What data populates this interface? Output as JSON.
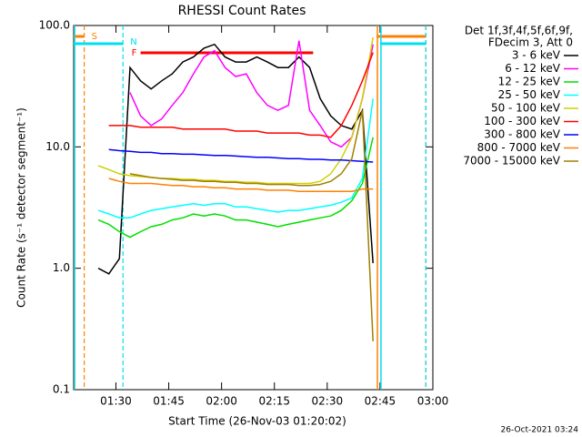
{
  "chart_data": {
    "type": "line",
    "title": "RHESSI Count Rates",
    "ylabel": "Count Rate (s⁻¹ detector segment⁻¹)",
    "xlabel": "Start Time (26-Nov-03 01:20:02)",
    "footer": "26-Oct-2021 03:24",
    "legend_title": [
      "Det 1f,3f,4f,5f,6f,9f,",
      "FDecim 3, Att 0"
    ],
    "log_y": true,
    "xlim": [
      "01:18",
      "03:00"
    ],
    "xticks": [
      "01:30",
      "01:45",
      "02:00",
      "02:15",
      "02:30",
      "02:45",
      "03:00"
    ],
    "ylim": [
      0.1,
      100
    ],
    "yticks": [
      0.1,
      {
        "value": 1,
        "label": "1.0"
      },
      {
        "value": 10,
        "label": "10.0"
      },
      {
        "value": 100,
        "label": "100.0"
      }
    ],
    "x": [
      "01:25",
      "01:28",
      "01:31",
      "01:34",
      "01:37",
      "01:40",
      "01:43",
      "01:46",
      "01:49",
      "01:52",
      "01:55",
      "01:58",
      "02:01",
      "02:04",
      "02:07",
      "02:10",
      "02:13",
      "02:16",
      "02:19",
      "02:22",
      "02:25",
      "02:28",
      "02:31",
      "02:34",
      "02:37",
      "02:40",
      "02:43"
    ],
    "series": [
      {
        "name": "3 - 6 keV",
        "color": "#000000",
        "values": [
          1.0,
          0.9,
          1.2,
          45,
          35,
          30,
          35,
          40,
          50,
          55,
          65,
          70,
          55,
          50,
          50,
          55,
          50,
          45,
          45,
          55,
          45,
          25,
          18,
          15,
          14,
          20,
          1.1
        ]
      },
      {
        "name": "6 - 12 keV",
        "color": "#ff00ff",
        "values": [
          null,
          null,
          null,
          28,
          18,
          15,
          17,
          22,
          28,
          40,
          55,
          62,
          45,
          38,
          40,
          28,
          22,
          20,
          22,
          75,
          20,
          15,
          11,
          10,
          12,
          25,
          70
        ]
      },
      {
        "name": "12 - 25 keV",
        "color": "#00e000",
        "values": [
          2.5,
          2.3,
          2.0,
          1.8,
          2.0,
          2.2,
          2.3,
          2.5,
          2.6,
          2.8,
          2.7,
          2.8,
          2.7,
          2.5,
          2.5,
          2.4,
          2.3,
          2.2,
          2.3,
          2.4,
          2.5,
          2.6,
          2.7,
          3.0,
          3.6,
          5.0,
          12
        ]
      },
      {
        "name": "25 - 50 keV",
        "color": "#00ffff",
        "values": [
          3.0,
          2.8,
          2.6,
          2.6,
          2.8,
          3.0,
          3.1,
          3.2,
          3.3,
          3.4,
          3.3,
          3.4,
          3.4,
          3.2,
          3.2,
          3.1,
          3.0,
          2.9,
          3.0,
          3.0,
          3.1,
          3.2,
          3.3,
          3.5,
          3.8,
          5.5,
          25
        ]
      },
      {
        "name": "50 - 100 keV",
        "color": "#d0d000",
        "values": [
          7.0,
          6.5,
          6.0,
          5.8,
          5.7,
          5.6,
          5.5,
          5.5,
          5.4,
          5.4,
          5.3,
          5.3,
          5.2,
          5.2,
          5.1,
          5.1,
          5.0,
          5.0,
          5.0,
          5.0,
          5.0,
          5.2,
          6.0,
          8.0,
          12,
          25,
          80
        ]
      },
      {
        "name": "100 - 300 keV",
        "color": "#ff0000",
        "values": [
          null,
          15,
          15,
          15,
          14.5,
          14.5,
          14.5,
          14.5,
          14,
          14,
          14,
          14,
          14,
          13.5,
          13.5,
          13.5,
          13,
          13,
          13,
          13,
          12.5,
          12.5,
          12,
          15,
          22,
          35,
          60
        ]
      },
      {
        "name": "300 - 800 keV",
        "color": "#0000ff",
        "values": [
          null,
          9.5,
          9.3,
          9.2,
          9.0,
          9.0,
          8.8,
          8.8,
          8.7,
          8.7,
          8.6,
          8.5,
          8.5,
          8.4,
          8.3,
          8.2,
          8.2,
          8.1,
          8.0,
          8.0,
          7.9,
          7.9,
          7.8,
          7.8,
          7.7,
          7.6,
          7.5
        ]
      },
      {
        "name": "800 - 7000 keV",
        "color": "#ff8000",
        "values": [
          null,
          5.5,
          5.2,
          5.0,
          5.0,
          5.0,
          4.9,
          4.8,
          4.8,
          4.7,
          4.7,
          4.6,
          4.6,
          4.5,
          4.5,
          4.5,
          4.4,
          4.4,
          4.4,
          4.3,
          4.3,
          4.3,
          4.3,
          4.3,
          4.3,
          4.5,
          4.5
        ]
      },
      {
        "name": "7000 - 15000 keV",
        "color": "#a08000",
        "values": [
          null,
          null,
          null,
          6.0,
          5.8,
          5.6,
          5.5,
          5.4,
          5.3,
          5.3,
          5.2,
          5.2,
          5.1,
          5.1,
          5.0,
          5.0,
          4.9,
          4.9,
          4.9,
          4.8,
          4.8,
          4.9,
          5.2,
          6.0,
          8.0,
          20,
          0.25
        ]
      }
    ],
    "flags": [
      {
        "label": "S",
        "color": "#ff8000",
        "intervals": [
          [
            "01:18",
            "01:21"
          ],
          [
            "02:44",
            "02:58"
          ]
        ]
      },
      {
        "label": "N",
        "color": "#00e0f0",
        "intervals": [
          [
            "01:18",
            "01:32"
          ],
          [
            "02:45",
            "02:58"
          ]
        ]
      },
      {
        "label": "F",
        "color": "#ff0000",
        "intervals": [
          [
            "01:37",
            "02:26"
          ]
        ]
      }
    ]
  }
}
